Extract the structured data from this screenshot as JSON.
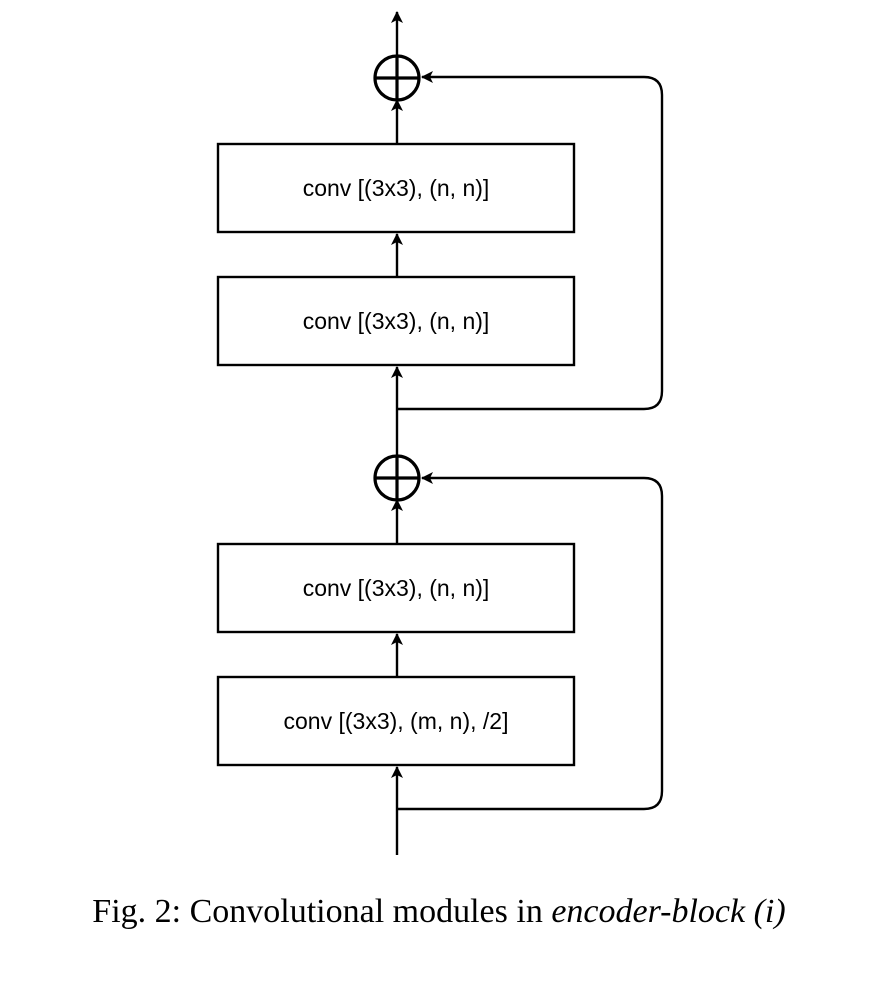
{
  "diagram": {
    "blocks": [
      {
        "id": "conv-1",
        "label": "conv [(3x3), (m, n), /2]"
      },
      {
        "id": "conv-2",
        "label": "conv [(3x3), (n, n)]"
      },
      {
        "id": "conv-3",
        "label": "conv [(3x3), (n, n)]"
      },
      {
        "id": "conv-4",
        "label": "conv [(3x3), (n, n)]"
      }
    ],
    "sum_nodes": [
      {
        "id": "sum-1",
        "symbol": "⊕"
      },
      {
        "id": "sum-2",
        "symbol": "⊕"
      }
    ],
    "edges": [
      {
        "from": "input",
        "to": "conv-1"
      },
      {
        "from": "conv-1",
        "to": "conv-2"
      },
      {
        "from": "conv-2",
        "to": "sum-1"
      },
      {
        "from": "input",
        "to": "sum-1",
        "type": "skip"
      },
      {
        "from": "sum-1",
        "to": "conv-3"
      },
      {
        "from": "conv-3",
        "to": "conv-4"
      },
      {
        "from": "conv-4",
        "to": "sum-2"
      },
      {
        "from": "sum-1",
        "to": "sum-2",
        "type": "skip"
      },
      {
        "from": "sum-2",
        "to": "output"
      }
    ],
    "stroke_color": "#000000"
  },
  "caption": {
    "prefix": "Fig. 2: Convolutional modules in ",
    "emphasis": "encoder-block (i)"
  }
}
